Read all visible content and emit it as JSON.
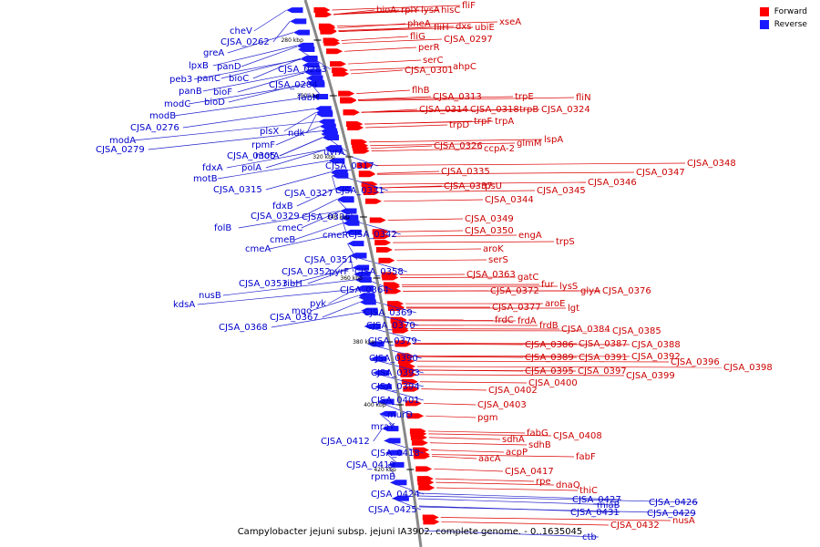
{
  "caption": "Campylobacter jejuni subsp. jejuni IA3902, complete genome. - 0..1635045",
  "legend": {
    "forward": {
      "label": "Forward",
      "color": "#ff0000"
    },
    "reverse": {
      "label": "Reverse",
      "color": "#1a1aff"
    }
  },
  "scale_ticks": [
    "280 kbp",
    "300 kbp",
    "320 kbp",
    "340 kbp",
    "360 kbp",
    "380 kbp",
    "400 kbp",
    "420 kbp"
  ],
  "forward_genes": [
    "bioA",
    "rplY",
    "lysA",
    "hisC",
    "fliF",
    "pheA",
    "fliH",
    "dxs",
    "ubiE",
    "xseA",
    "fliG",
    "CJSA_0297",
    "perR",
    "serC",
    "CJSA_0301",
    "ahpC",
    "flhB",
    "CJSA_0313",
    "trpE",
    "fliN",
    "CJSA_0314",
    "CJSA_0318",
    "trpB",
    "CJSA_0324",
    "trpD",
    "trpF",
    "trpA",
    "lspA",
    "glmM",
    "CJSA_0326",
    "ccpA-2",
    "CJSA_0348",
    "CJSA_0347",
    "CJSA_0346",
    "CJSA_0335",
    "CJSA_0345",
    "CJSA_0337",
    "rpsU",
    "CJSA_0344",
    "CJSA_0349",
    "CJSA_0350",
    "engA",
    "trpS",
    "aroK",
    "serS",
    "CJSA_0363",
    "gatC",
    "fur",
    "lysS",
    "glyA",
    "CJSA_0376",
    "CJSA_0372",
    "CJSA_0377",
    "aroE",
    "lgt",
    "frdC",
    "frdA",
    "frdB",
    "CJSA_0384",
    "CJSA_0385",
    "CJSA_0386",
    "CJSA_0387",
    "CJSA_0388",
    "CJSA_0389",
    "CJSA_0391",
    "CJSA_0392",
    "CJSA_0396",
    "CJSA_0398",
    "CJSA_0395",
    "CJSA_0397",
    "CJSA_0399",
    "CJSA_0400",
    "CJSA_0402",
    "CJSA_0403",
    "pgm",
    "fabG",
    "CJSA_0408",
    "sdhA",
    "sdhB",
    "acpP",
    "fabF",
    "aacA",
    "CJSA_0417",
    "rpe",
    "dnaQ",
    "thiC",
    "nusA",
    "CJSA_0432"
  ],
  "reverse_genes": [
    "cheV",
    "CJSA_0262",
    "greA",
    "lpxB",
    "panD",
    "CJSA_0283",
    "peb3",
    "panC",
    "bioC",
    "panB",
    "bioF",
    "CJSA_0284",
    "modC",
    "bioD",
    "fabH",
    "modB",
    "CJSA_0276",
    "plsX",
    "ndk",
    "modA",
    "rpmF",
    "CJSA_0279",
    "CJSA_0305",
    "motA",
    "uvrA",
    "fdxA",
    "polA",
    "CJSA_0317",
    "motB",
    "CJSA_0315",
    "CJSA_0327",
    "CJSA_0331",
    "fdxB",
    "CJSA_0329",
    "CJSA_0336",
    "folB",
    "cmeC",
    "cmeB",
    "cmeR",
    "CJSA_0342",
    "cmeA",
    "CJSA_0351",
    "CJSA_0352",
    "pyrF",
    "CJSA_0358",
    "CJSA_0353",
    "ribH",
    "nusB",
    "CJSA_0364",
    "kdsA",
    "pyk",
    "CJSA_0369",
    "mqo",
    "CJSA_0367",
    "CJSA_0368",
    "CJSA_0370",
    "CJSA_0379",
    "CJSA_0390",
    "CJSA_0393",
    "CJSA_0394",
    "CJSA_0401",
    "murD",
    "mraY",
    "CJSA_0412",
    "CJSA_0418",
    "CJSA_0419",
    "rpmB",
    "CJSA_0424",
    "CJSA_0425",
    "CJSA_0427",
    "miaB",
    "CJSA_0426",
    "CJSA_0431",
    "CJSA_0429",
    "ctb"
  ]
}
